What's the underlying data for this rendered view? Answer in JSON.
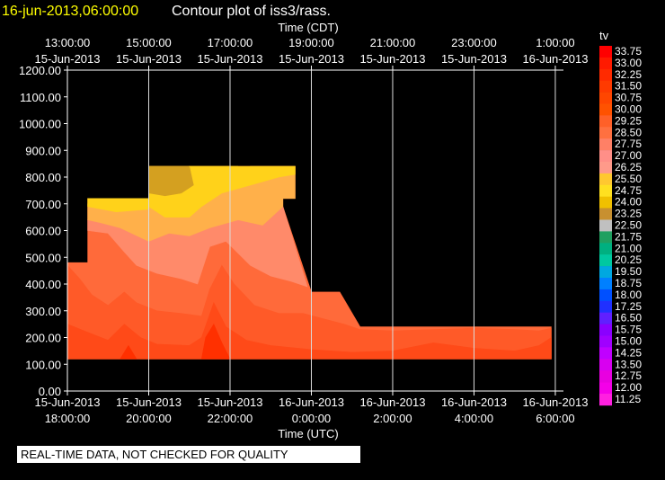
{
  "header": {
    "timestamp": "16-jun-2013,06:00:00",
    "title": "Contour plot of iss3/rass."
  },
  "warning": "REAL-TIME DATA, NOT CHECKED FOR QUALITY",
  "colors": {
    "timestamp": "#ffff00",
    "background": "#000000",
    "grid": "#ffffff"
  },
  "chart_data": {
    "type": "heatmap",
    "variable": "tv",
    "top_axis_label": "Time (CDT)",
    "bottom_axis_label": "Time (UTC)",
    "xlim_hours": [
      18,
      30.2
    ],
    "ylim": [
      0,
      1200
    ],
    "yticks": [
      "0.00",
      "100.00",
      "200.00",
      "300.00",
      "400.00",
      "500.00",
      "600.00",
      "700.00",
      "800.00",
      "900.00",
      "1000.00",
      "1100.00",
      "1200.00"
    ],
    "bottom_ticks": [
      {
        "h": 18,
        "date": "15-Jun-2013",
        "time": "18:00:00"
      },
      {
        "h": 20,
        "date": "15-Jun-2013",
        "time": "20:00:00"
      },
      {
        "h": 22,
        "date": "15-Jun-2013",
        "time": "22:00:00"
      },
      {
        "h": 24,
        "date": "16-Jun-2013",
        "time": "0:00:00"
      },
      {
        "h": 26,
        "date": "16-Jun-2013",
        "time": "2:00:00"
      },
      {
        "h": 28,
        "date": "16-Jun-2013",
        "time": "4:00:00"
      },
      {
        "h": 30,
        "date": "16-Jun-2013",
        "time": "6:00:00"
      }
    ],
    "top_ticks": [
      {
        "h": 18,
        "time": "13:00:00",
        "date": "15-Jun-2013"
      },
      {
        "h": 20,
        "time": "15:00:00",
        "date": "15-Jun-2013"
      },
      {
        "h": 22,
        "time": "17:00:00",
        "date": "15-Jun-2013"
      },
      {
        "h": 24,
        "time": "19:00:00",
        "date": "15-Jun-2013"
      },
      {
        "h": 26,
        "time": "21:00:00",
        "date": "15-Jun-2013"
      },
      {
        "h": 28,
        "time": "23:00:00",
        "date": "15-Jun-2013"
      },
      {
        "h": 30,
        "time": "1:00:00",
        "date": "16-Jun-2013"
      }
    ],
    "vgrid_hours": [
      20,
      22,
      24,
      26,
      28,
      30
    ],
    "legend": {
      "levels": [
        "33.75",
        "33.00",
        "32.25",
        "31.50",
        "30.75",
        "30.00",
        "29.25",
        "28.50",
        "27.75",
        "27.00",
        "26.25",
        "25.50",
        "24.75",
        "24.00",
        "23.25",
        "22.50",
        "21.75",
        "21.00",
        "20.25",
        "19.50",
        "18.75",
        "18.00",
        "17.25",
        "16.50",
        "15.75",
        "15.00",
        "14.25",
        "13.50",
        "12.75",
        "12.00",
        "11.25"
      ],
      "colors": [
        "#ff0000",
        "#ff1a00",
        "#ff2a00",
        "#ff3a00",
        "#ff4600",
        "#ff5200",
        "#ff6028",
        "#ff7040",
        "#ff8066",
        "#ff8f88",
        "#ff9a8a",
        "#ffc830",
        "#ffe020",
        "#f0c000",
        "#c89030",
        "#c0c0c0",
        "#20a060",
        "#00b080",
        "#00c8a0",
        "#00a8e0",
        "#0080ff",
        "#0050ff",
        "#2030ff",
        "#6020ff",
        "#8a00ff",
        "#a000ff",
        "#c000ff",
        "#d800f0",
        "#e800e0",
        "#f400e8",
        "#ff20e0"
      ]
    },
    "regions": [
      {
        "level": "27.00",
        "color": "#ff6a3a",
        "points": [
          [
            18,
            120
          ],
          [
            18,
            480
          ],
          [
            18.5,
            480
          ],
          [
            18.5,
            720
          ],
          [
            20,
            720
          ],
          [
            20,
            840
          ],
          [
            23.6,
            840
          ],
          [
            23.6,
            720
          ],
          [
            23.3,
            720
          ],
          [
            23.3,
            690
          ],
          [
            24,
            370
          ],
          [
            24.7,
            370
          ],
          [
            25.2,
            240
          ],
          [
            29.9,
            240
          ],
          [
            29.9,
            120
          ]
        ]
      },
      {
        "level": "29.25",
        "color": "#ff5a28",
        "points": [
          [
            18,
            120
          ],
          [
            18,
            470
          ],
          [
            18.3,
            420
          ],
          [
            18.6,
            360
          ],
          [
            19,
            320
          ],
          [
            19.4,
            370
          ],
          [
            19.7,
            330
          ],
          [
            20.2,
            300
          ],
          [
            20.8,
            290
          ],
          [
            21.3,
            280
          ],
          [
            21.5,
            380
          ],
          [
            21.8,
            470
          ],
          [
            22.1,
            400
          ],
          [
            22.6,
            320
          ],
          [
            23.2,
            290
          ],
          [
            23.8,
            290
          ],
          [
            24.3,
            270
          ],
          [
            24.8,
            250
          ],
          [
            25.2,
            230
          ],
          [
            26,
            225
          ],
          [
            27,
            230
          ],
          [
            28,
            235
          ],
          [
            29,
            230
          ],
          [
            29.6,
            225
          ],
          [
            29.9,
            235
          ],
          [
            29.9,
            120
          ]
        ]
      },
      {
        "level": "30.00",
        "color": "#ff4a18",
        "points": [
          [
            18,
            120
          ],
          [
            18,
            250
          ],
          [
            18.5,
            220
          ],
          [
            19,
            190
          ],
          [
            19.4,
            250
          ],
          [
            19.8,
            200
          ],
          [
            20.2,
            175
          ],
          [
            21,
            170
          ],
          [
            21.3,
            200
          ],
          [
            21.6,
            330
          ],
          [
            21.9,
            240
          ],
          [
            22.4,
            190
          ],
          [
            23,
            170
          ],
          [
            24,
            155
          ],
          [
            25,
            145
          ],
          [
            26,
            150
          ],
          [
            27,
            180
          ],
          [
            28,
            160
          ],
          [
            29,
            150
          ],
          [
            29.6,
            170
          ],
          [
            29.9,
            200
          ],
          [
            29.9,
            120
          ]
        ]
      },
      {
        "level": "30.75",
        "color": "#ff3000",
        "points": [
          [
            19.3,
            120
          ],
          [
            19.5,
            170
          ],
          [
            19.7,
            120
          ]
        ]
      },
      {
        "level": "30.75",
        "color": "#ff3000",
        "points": [
          [
            21.3,
            120
          ],
          [
            21.4,
            200
          ],
          [
            21.6,
            250
          ],
          [
            21.8,
            180
          ],
          [
            22,
            120
          ]
        ]
      },
      {
        "level": "28.50",
        "color": "#ff8a6a",
        "points": [
          [
            18.5,
            600
          ],
          [
            19,
            590
          ],
          [
            19.4,
            520
          ],
          [
            19.7,
            470
          ],
          [
            20.2,
            440
          ],
          [
            20.8,
            420
          ],
          [
            21.2,
            400
          ],
          [
            21.5,
            540
          ],
          [
            21.9,
            560
          ],
          [
            22.5,
            470
          ],
          [
            23,
            430
          ],
          [
            23.5,
            410
          ],
          [
            23.9,
            390
          ],
          [
            23.3,
            690
          ],
          [
            22.8,
            620
          ],
          [
            22.2,
            640
          ],
          [
            21.5,
            610
          ],
          [
            21,
            580
          ],
          [
            20.5,
            590
          ],
          [
            20,
            560
          ],
          [
            19.3,
            610
          ],
          [
            18.8,
            630
          ],
          [
            18.5,
            640
          ]
        ]
      },
      {
        "level": "26.25",
        "color": "#ffb04a",
        "points": [
          [
            18.5,
            640
          ],
          [
            18.8,
            630
          ],
          [
            19.3,
            610
          ],
          [
            20,
            560
          ],
          [
            20.5,
            590
          ],
          [
            21,
            580
          ],
          [
            21.5,
            610
          ],
          [
            22.2,
            640
          ],
          [
            22.8,
            620
          ],
          [
            23.3,
            690
          ],
          [
            23.3,
            720
          ],
          [
            23.6,
            720
          ],
          [
            23.6,
            840
          ],
          [
            22.5,
            840
          ],
          [
            21.8,
            760
          ],
          [
            21,
            720
          ],
          [
            20.2,
            700
          ],
          [
            19.8,
            690
          ],
          [
            19,
            690
          ],
          [
            18.5,
            700
          ]
        ]
      },
      {
        "level": "24.75",
        "color": "#ffd21a",
        "points": [
          [
            20,
            840
          ],
          [
            20,
            690
          ],
          [
            20.4,
            650
          ],
          [
            21,
            650
          ],
          [
            21.3,
            690
          ],
          [
            21.8,
            740
          ],
          [
            22.5,
            770
          ],
          [
            23.2,
            800
          ],
          [
            23.6,
            810
          ],
          [
            23.6,
            840
          ]
        ]
      },
      {
        "level": "24.75",
        "color": "#ffd21a",
        "points": [
          [
            18.5,
            720
          ],
          [
            18.5,
            690
          ],
          [
            19.2,
            670
          ],
          [
            20,
            680
          ],
          [
            20,
            720
          ]
        ]
      },
      {
        "level": "24.00",
        "color": "#d4a020",
        "points": [
          [
            20,
            840
          ],
          [
            20,
            740
          ],
          [
            20.4,
            730
          ],
          [
            20.8,
            740
          ],
          [
            21.1,
            770
          ],
          [
            21,
            840
          ]
        ]
      },
      {
        "level": "24.75",
        "color": "#ffd21a",
        "points": [
          [
            21,
            840
          ],
          [
            21.3,
            800
          ],
          [
            21.8,
            820
          ],
          [
            22.2,
            840
          ]
        ]
      }
    ]
  }
}
